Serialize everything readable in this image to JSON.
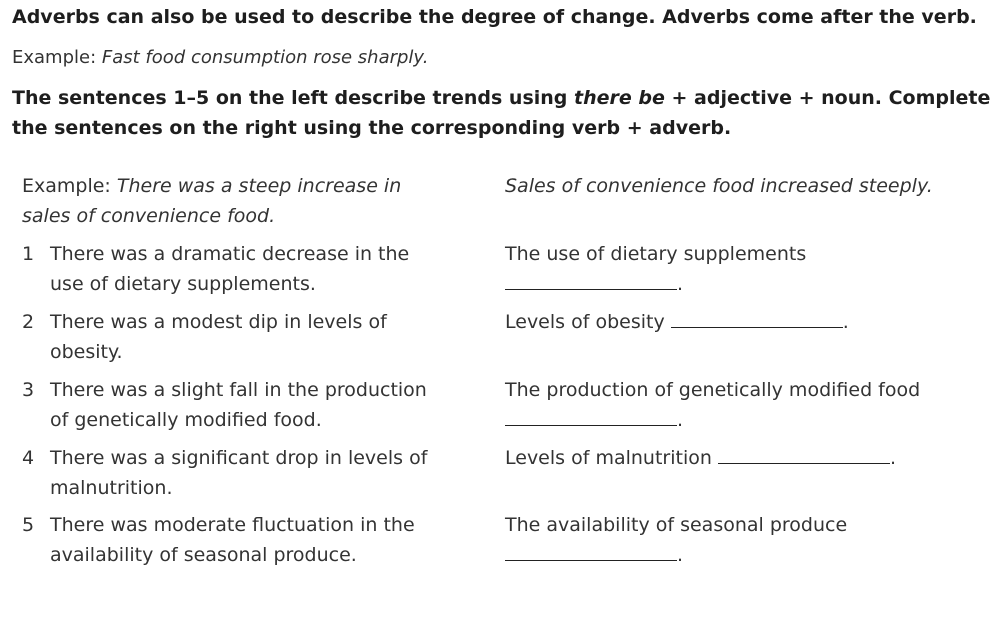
{
  "intro": {
    "line1": "Adverbs can also be used to describe the degree of change. Adverbs come after the verb.",
    "example_label": "Example: ",
    "example_text": "Fast food consumption rose sharply."
  },
  "instructions": {
    "part1": "The sentences 1–5 on the left describe trends using ",
    "part1_italic": "there be",
    "part2": " + adjective + noun. Complete",
    "line2": "the sentences on the right using the corresponding verb + adverb."
  },
  "example_row": {
    "label": "Example: ",
    "left_line1_italic": "There was a steep increase in",
    "left_line2_italic": "sales of convenience food.",
    "right_italic": "Sales of convenience food increased steeply."
  },
  "items": [
    {
      "number": "1",
      "left_line1": "There was a dramatic decrease in the",
      "left_line2": "use of dietary supplements.",
      "right_line1": "The use of dietary supplements",
      "right_line2": "",
      "end_punct": "."
    },
    {
      "number": "2",
      "left_line1": "There was a modest dip in levels of",
      "left_line2": "obesity.",
      "right_line1": "Levels of obesity",
      "right_line2": "",
      "end_punct": "."
    },
    {
      "number": "3",
      "left_line1": "There was a slight fall in the production",
      "left_line2": "of genetically modified food.",
      "right_line1": "The production of genetically modified food",
      "right_line2": "",
      "end_punct": "."
    },
    {
      "number": "4",
      "left_line1": "There was a significant drop in levels of",
      "left_line2": "malnutrition.",
      "right_line1": "Levels of malnutrition",
      "right_line2": "",
      "end_punct": "."
    },
    {
      "number": "5",
      "left_line1": "There was moderate fluctuation in the",
      "left_line2": "availability of seasonal produce.",
      "right_line1": "The availability of seasonal produce",
      "right_line2": "",
      "end_punct": "."
    }
  ]
}
